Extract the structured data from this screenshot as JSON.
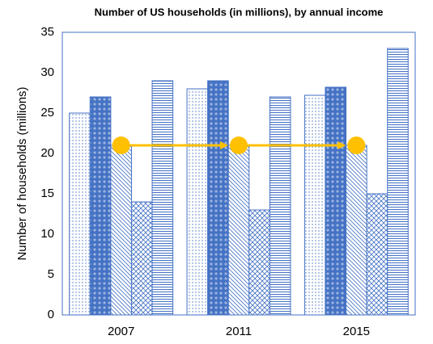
{
  "chart_data": {
    "type": "bar",
    "title": "Number of US households (in millions), by annual income",
    "y_label": "Number of households (millions)",
    "categories": [
      "2007",
      "2011",
      "2015"
    ],
    "series": [
      {
        "color": "#4472c4",
        "pattern": "dots",
        "values": [
          25,
          28,
          27.2
        ]
      },
      {
        "color": "#4472c4",
        "pattern": "dense-dots",
        "values": [
          27,
          29,
          28.2
        ]
      },
      {
        "color": "#4472c4",
        "pattern": "diagonal",
        "values": [
          21,
          21,
          21
        ]
      },
      {
        "color": "#4472c4",
        "pattern": "crosshatch",
        "values": [
          14,
          13,
          15
        ]
      },
      {
        "color": "#4472c4",
        "pattern": "horizontal",
        "values": [
          29,
          27,
          33
        ]
      }
    ],
    "highlight_series": 2,
    "highlight_color": "#ffc000",
    "ylim": [
      0,
      35
    ],
    "yticks": [
      0,
      5,
      10,
      15,
      20,
      25,
      30,
      35
    ],
    "grid": false
  }
}
